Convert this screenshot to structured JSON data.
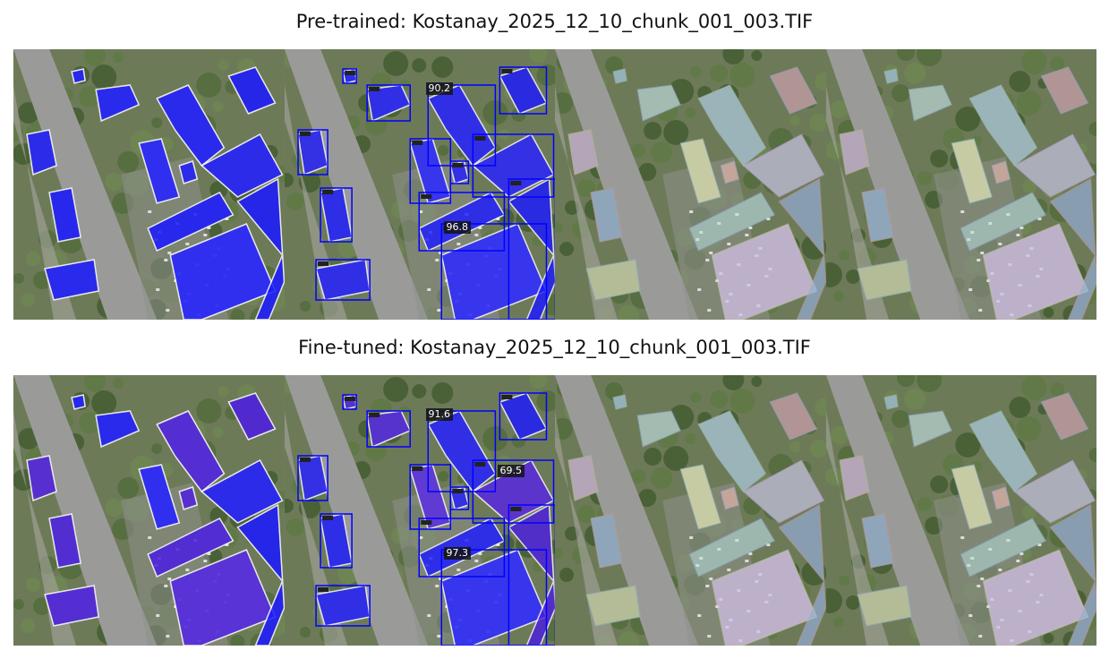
{
  "titles": {
    "pretrained": "Pre-trained: Kostanay_2025_12_10_chunk_001_003.TIF",
    "finetuned": "Fine-tuned: Kostanay_2025_12_10_chunk_001_003.TIF"
  },
  "pretrained_scores": [
    "90.2",
    "96.8"
  ],
  "finetuned_scores": [
    "91.6",
    "97.3",
    "69.5"
  ],
  "colors": {
    "mask_blue": "#1a1aff",
    "mask_violet": "#4b1fe0",
    "box_blue": "#0000ff",
    "road": "#9a9b98",
    "vegetation": "#5f7a45"
  }
}
